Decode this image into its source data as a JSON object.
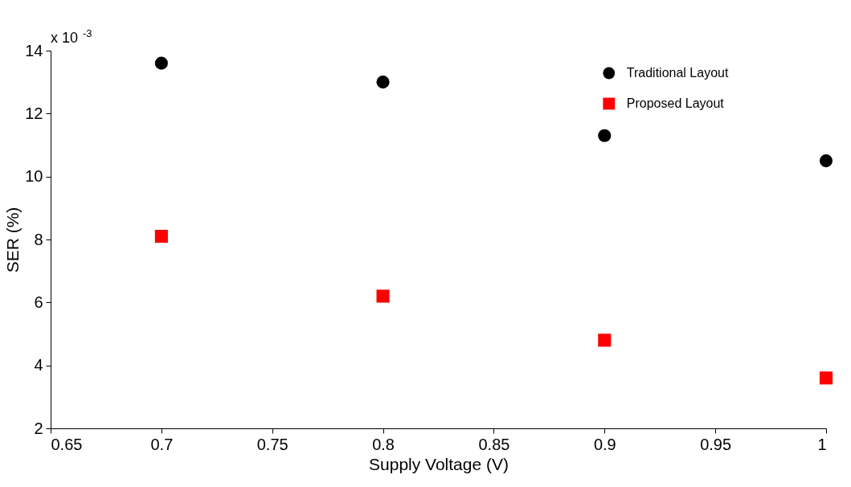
{
  "chart_data": {
    "type": "scatter",
    "xlabel": "Supply Voltage (V)",
    "ylabel": "SER (%)",
    "annotations": [
      "x 10$^{-3}$"
    ],
    "x": [
      0.7,
      0.8,
      0.9,
      1.0
    ],
    "series": [
      {
        "name": "Traditional Layout",
        "color": "#000000",
        "marker": "circle",
        "values": [
          13.6,
          13.0,
          11.3,
          10.5
        ]
      },
      {
        "name": "Proposed Layout",
        "color": "#ff0000",
        "marker": "square",
        "values": [
          8.1,
          6.2,
          4.8,
          3.6
        ]
      }
    ],
    "xlim": [
      0.65,
      1.0
    ],
    "xticks": [
      0.65,
      0.7,
      0.75,
      0.8,
      0.85,
      0.9,
      0.95,
      1
    ],
    "ylim": [
      2,
      14
    ],
    "yticks": [
      2,
      4,
      6,
      8,
      10,
      12,
      14
    ],
    "grid": false,
    "legend": "top right"
  }
}
